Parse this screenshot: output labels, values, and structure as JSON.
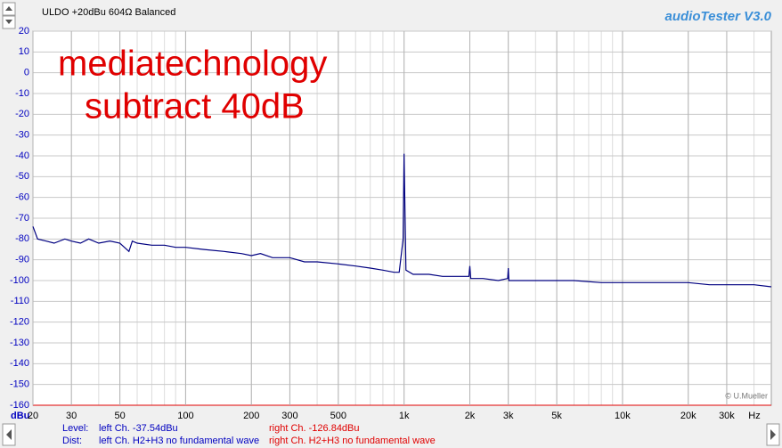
{
  "chart_data": {
    "type": "line",
    "title": "ULDO +20dBu 604Ω Balanced",
    "brand": "audioTester  V3.0",
    "annotations": [
      "mediatechnology",
      "subtract 40dB"
    ],
    "credit": "© U.Mueller",
    "y_label": "dBu",
    "x_label": "Hz",
    "log_x": true,
    "grid": true,
    "xlim": [
      20,
      48000
    ],
    "ylim": [
      -160,
      20
    ],
    "yticks": [
      -160,
      -150,
      -140,
      -130,
      -120,
      -110,
      -100,
      -90,
      -80,
      -70,
      -60,
      -50,
      -40,
      -30,
      -20,
      -10,
      0,
      10,
      20
    ],
    "xticks": [
      20,
      30,
      50,
      100,
      200,
      300,
      500,
      {
        "value": 1000,
        "label": "1k"
      },
      {
        "value": 2000,
        "label": "2k"
      },
      {
        "value": 3000,
        "label": "3k"
      },
      {
        "value": 5000,
        "label": "5k"
      },
      {
        "value": 10000,
        "label": "10k"
      },
      {
        "value": 20000,
        "label": "20k"
      },
      {
        "value": 30000,
        "label": "30k"
      }
    ],
    "x": [
      20,
      21,
      23,
      25,
      28,
      30,
      33,
      36,
      40,
      45,
      50,
      55,
      57,
      60,
      70,
      80,
      90,
      100,
      120,
      150,
      180,
      200,
      220,
      250,
      300,
      350,
      400,
      500,
      600,
      700,
      800,
      900,
      950,
      990,
      1000,
      1010,
      1020,
      1100,
      1300,
      1500,
      1800,
      1980,
      2000,
      2020,
      2300,
      2700,
      2980,
      3000,
      3020,
      3500,
      4000,
      5000,
      6000,
      8000,
      10000,
      13000,
      16000,
      20000,
      25000,
      30000,
      40000,
      48000
    ],
    "series": [
      {
        "name": "left Ch.",
        "color": "#000080",
        "values": [
          -74,
          -80,
          -81,
          -82,
          -80,
          -81,
          -82,
          -80,
          -82,
          -81,
          -82,
          -86,
          -81,
          -82,
          -83,
          -83,
          -84,
          -84,
          -85,
          -86,
          -87,
          -88,
          -87,
          -89,
          -89,
          -91,
          -91,
          -92,
          -93,
          -94,
          -95,
          -96,
          -96,
          -80,
          -39,
          -67,
          -95,
          -97,
          -97,
          -98,
          -98,
          -98,
          -93,
          -99,
          -99,
          -100,
          -99,
          -94,
          -100,
          -100,
          -100,
          -100,
          -100,
          -101,
          -101,
          -101,
          -101,
          -101,
          -102,
          -102,
          -102,
          -103
        ]
      }
    ],
    "status": {
      "level_label": "Level:",
      "level_left": "left Ch. -37.54dBu",
      "level_right": "right Ch. -126.84dBu",
      "dist_label": "Dist:",
      "dist_left": "left Ch. H2+H3 no fundamental wave",
      "dist_right": "right Ch. H2+H3 no fundamental wave"
    }
  }
}
